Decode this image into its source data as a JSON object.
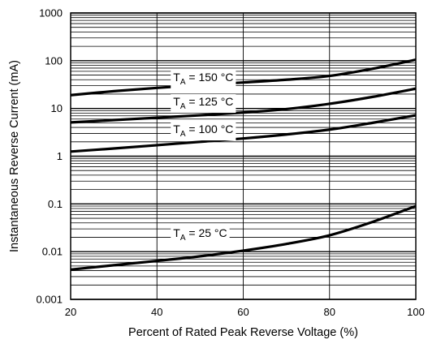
{
  "chart_data": {
    "type": "line",
    "xlabel": "Percent of Rated Peak Reverse Voltage (%)",
    "ylabel": "Instantaneous Reverse Current (mA)",
    "xlim": [
      20,
      100
    ],
    "ylim": [
      0.001,
      1000
    ],
    "yscale": "log",
    "grid": "on",
    "x_ticks": [
      "20",
      "40",
      "60",
      "80",
      "100"
    ],
    "y_ticks": [
      "0.001",
      "0.01",
      "0.1",
      "1",
      "10",
      "100",
      "1000"
    ],
    "series": [
      {
        "name": "TA = 150 °C",
        "label_main": "T",
        "label_sub": "A",
        "label_rest": " = 150 °C",
        "label_x": 40,
        "label_y": 45,
        "x": [
          20,
          30,
          40,
          50,
          60,
          70,
          80,
          90,
          100
        ],
        "y": [
          19,
          23,
          27,
          31,
          35,
          40,
          48,
          68,
          105
        ]
      },
      {
        "name": "TA = 125 °C",
        "label_main": "T",
        "label_sub": "A",
        "label_rest": " = 125 °C",
        "label_x": 40,
        "label_y": 14,
        "x": [
          20,
          30,
          40,
          50,
          60,
          70,
          80,
          90,
          100
        ],
        "y": [
          5.1,
          5.7,
          6.4,
          7.2,
          8.2,
          9.7,
          12.5,
          17.5,
          26
        ]
      },
      {
        "name": "TA = 100 °C",
        "label_main": "T",
        "label_sub": "A",
        "label_rest": " = 100 °C",
        "label_x": 40,
        "label_y": 3.7,
        "x": [
          20,
          30,
          40,
          50,
          60,
          70,
          80,
          90,
          100
        ],
        "y": [
          1.25,
          1.45,
          1.7,
          2.0,
          2.35,
          2.85,
          3.6,
          5.0,
          7.2
        ]
      },
      {
        "name": "TA = 25 °C",
        "label_main": "T",
        "label_sub": "A",
        "label_rest": " = 25 °C",
        "label_x": 40,
        "label_y": 0.025,
        "x": [
          20,
          30,
          40,
          50,
          60,
          70,
          80,
          90,
          100
        ],
        "y": [
          0.0042,
          0.0052,
          0.0064,
          0.008,
          0.0105,
          0.0145,
          0.022,
          0.042,
          0.09
        ]
      }
    ]
  }
}
